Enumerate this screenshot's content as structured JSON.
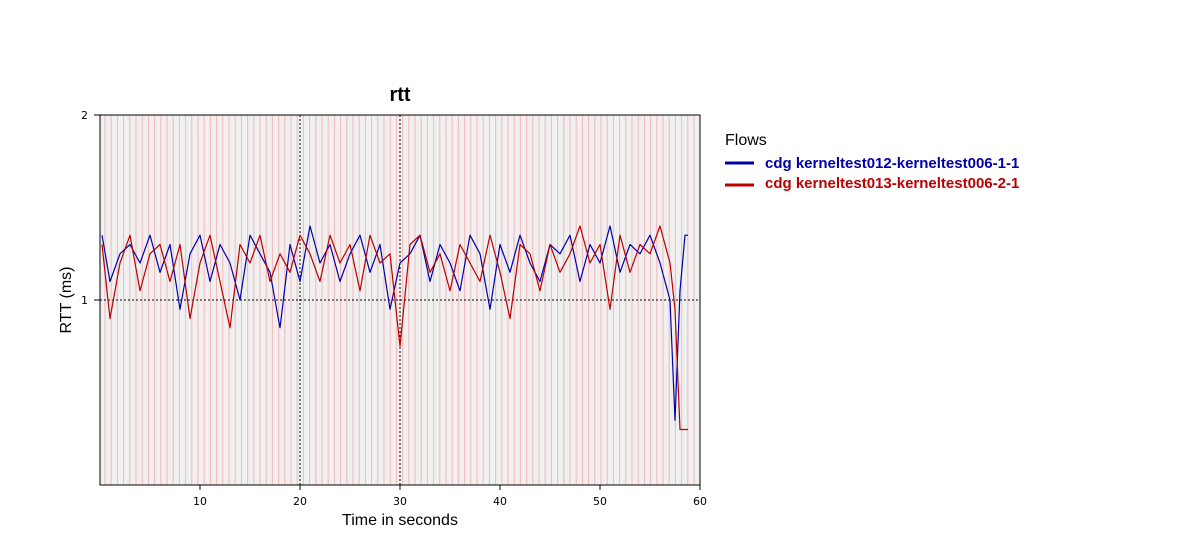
{
  "chart_data": {
    "type": "line",
    "title": "rtt",
    "xlabel": "Time in seconds",
    "ylabel": "RTT (ms)",
    "xlim": [
      0,
      60
    ],
    "ylim": [
      0,
      2
    ],
    "x_ticks": [
      10,
      20,
      30,
      40,
      50,
      60
    ],
    "x_tick_labels": [
      "10",
      "20",
      "30",
      "40",
      "50",
      "60"
    ],
    "y_ticks": [
      1,
      2
    ],
    "y_tick_labels": [
      "1",
      "2"
    ],
    "grid": "dotted lines at x=20, x=30 and y=1",
    "background_color": "#f0f0f0",
    "event_stripe_color": "#f4b8b8",
    "legend": {
      "title": "Flows",
      "placement": "right"
    },
    "series": [
      {
        "name": "cdg kerneltest012-kerneltest006-1-1",
        "color": "#0000aa",
        "x": [
          0.2,
          1,
          2,
          3,
          4,
          5,
          6,
          7,
          8,
          9,
          10,
          11,
          12,
          13,
          14,
          15,
          16,
          17,
          18,
          19,
          20,
          21,
          22,
          23,
          24,
          25,
          26,
          27,
          28,
          29,
          30,
          31,
          32,
          33,
          34,
          35,
          36,
          37,
          38,
          39,
          40,
          41,
          42,
          43,
          44,
          45,
          46,
          47,
          48,
          49,
          50,
          51,
          52,
          53,
          54,
          55,
          56,
          57,
          57.5,
          58,
          58.5,
          58.8
        ],
        "y": [
          1.35,
          1.1,
          1.25,
          1.3,
          1.2,
          1.35,
          1.15,
          1.3,
          0.95,
          1.25,
          1.35,
          1.1,
          1.3,
          1.2,
          1.0,
          1.35,
          1.25,
          1.15,
          0.85,
          1.3,
          1.1,
          1.4,
          1.2,
          1.3,
          1.1,
          1.25,
          1.35,
          1.15,
          1.3,
          0.95,
          1.2,
          1.25,
          1.35,
          1.1,
          1.3,
          1.2,
          1.05,
          1.35,
          1.25,
          0.95,
          1.3,
          1.15,
          1.35,
          1.2,
          1.1,
          1.3,
          1.25,
          1.35,
          1.1,
          1.3,
          1.2,
          1.4,
          1.15,
          1.3,
          1.25,
          1.35,
          1.2,
          1.0,
          0.35,
          1.05,
          1.35,
          1.35
        ]
      },
      {
        "name": "cdg kerneltest013-kerneltest006-2-1",
        "color": "#bb0000",
        "x": [
          0.2,
          1,
          2,
          3,
          4,
          5,
          6,
          7,
          8,
          9,
          10,
          11,
          12,
          13,
          14,
          15,
          16,
          17,
          18,
          19,
          20,
          21,
          22,
          23,
          24,
          25,
          26,
          27,
          28,
          29,
          30,
          31,
          32,
          33,
          34,
          35,
          36,
          37,
          38,
          39,
          40,
          41,
          42,
          43,
          44,
          45,
          46,
          47,
          48,
          49,
          50,
          51,
          52,
          53,
          54,
          55,
          56,
          57,
          57.5,
          58,
          58.5,
          58.8
        ],
        "y": [
          1.3,
          0.9,
          1.2,
          1.35,
          1.05,
          1.25,
          1.3,
          1.1,
          1.3,
          0.9,
          1.2,
          1.35,
          1.1,
          0.85,
          1.3,
          1.2,
          1.35,
          1.1,
          1.25,
          1.15,
          1.35,
          1.25,
          1.1,
          1.35,
          1.2,
          1.3,
          1.05,
          1.35,
          1.2,
          1.25,
          0.75,
          1.3,
          1.35,
          1.15,
          1.25,
          1.05,
          1.3,
          1.2,
          1.1,
          1.35,
          1.15,
          0.9,
          1.3,
          1.25,
          1.05,
          1.3,
          1.15,
          1.25,
          1.4,
          1.2,
          1.3,
          0.95,
          1.35,
          1.15,
          1.3,
          1.25,
          1.4,
          1.2,
          0.95,
          0.3,
          0.3,
          0.3
        ]
      }
    ]
  }
}
